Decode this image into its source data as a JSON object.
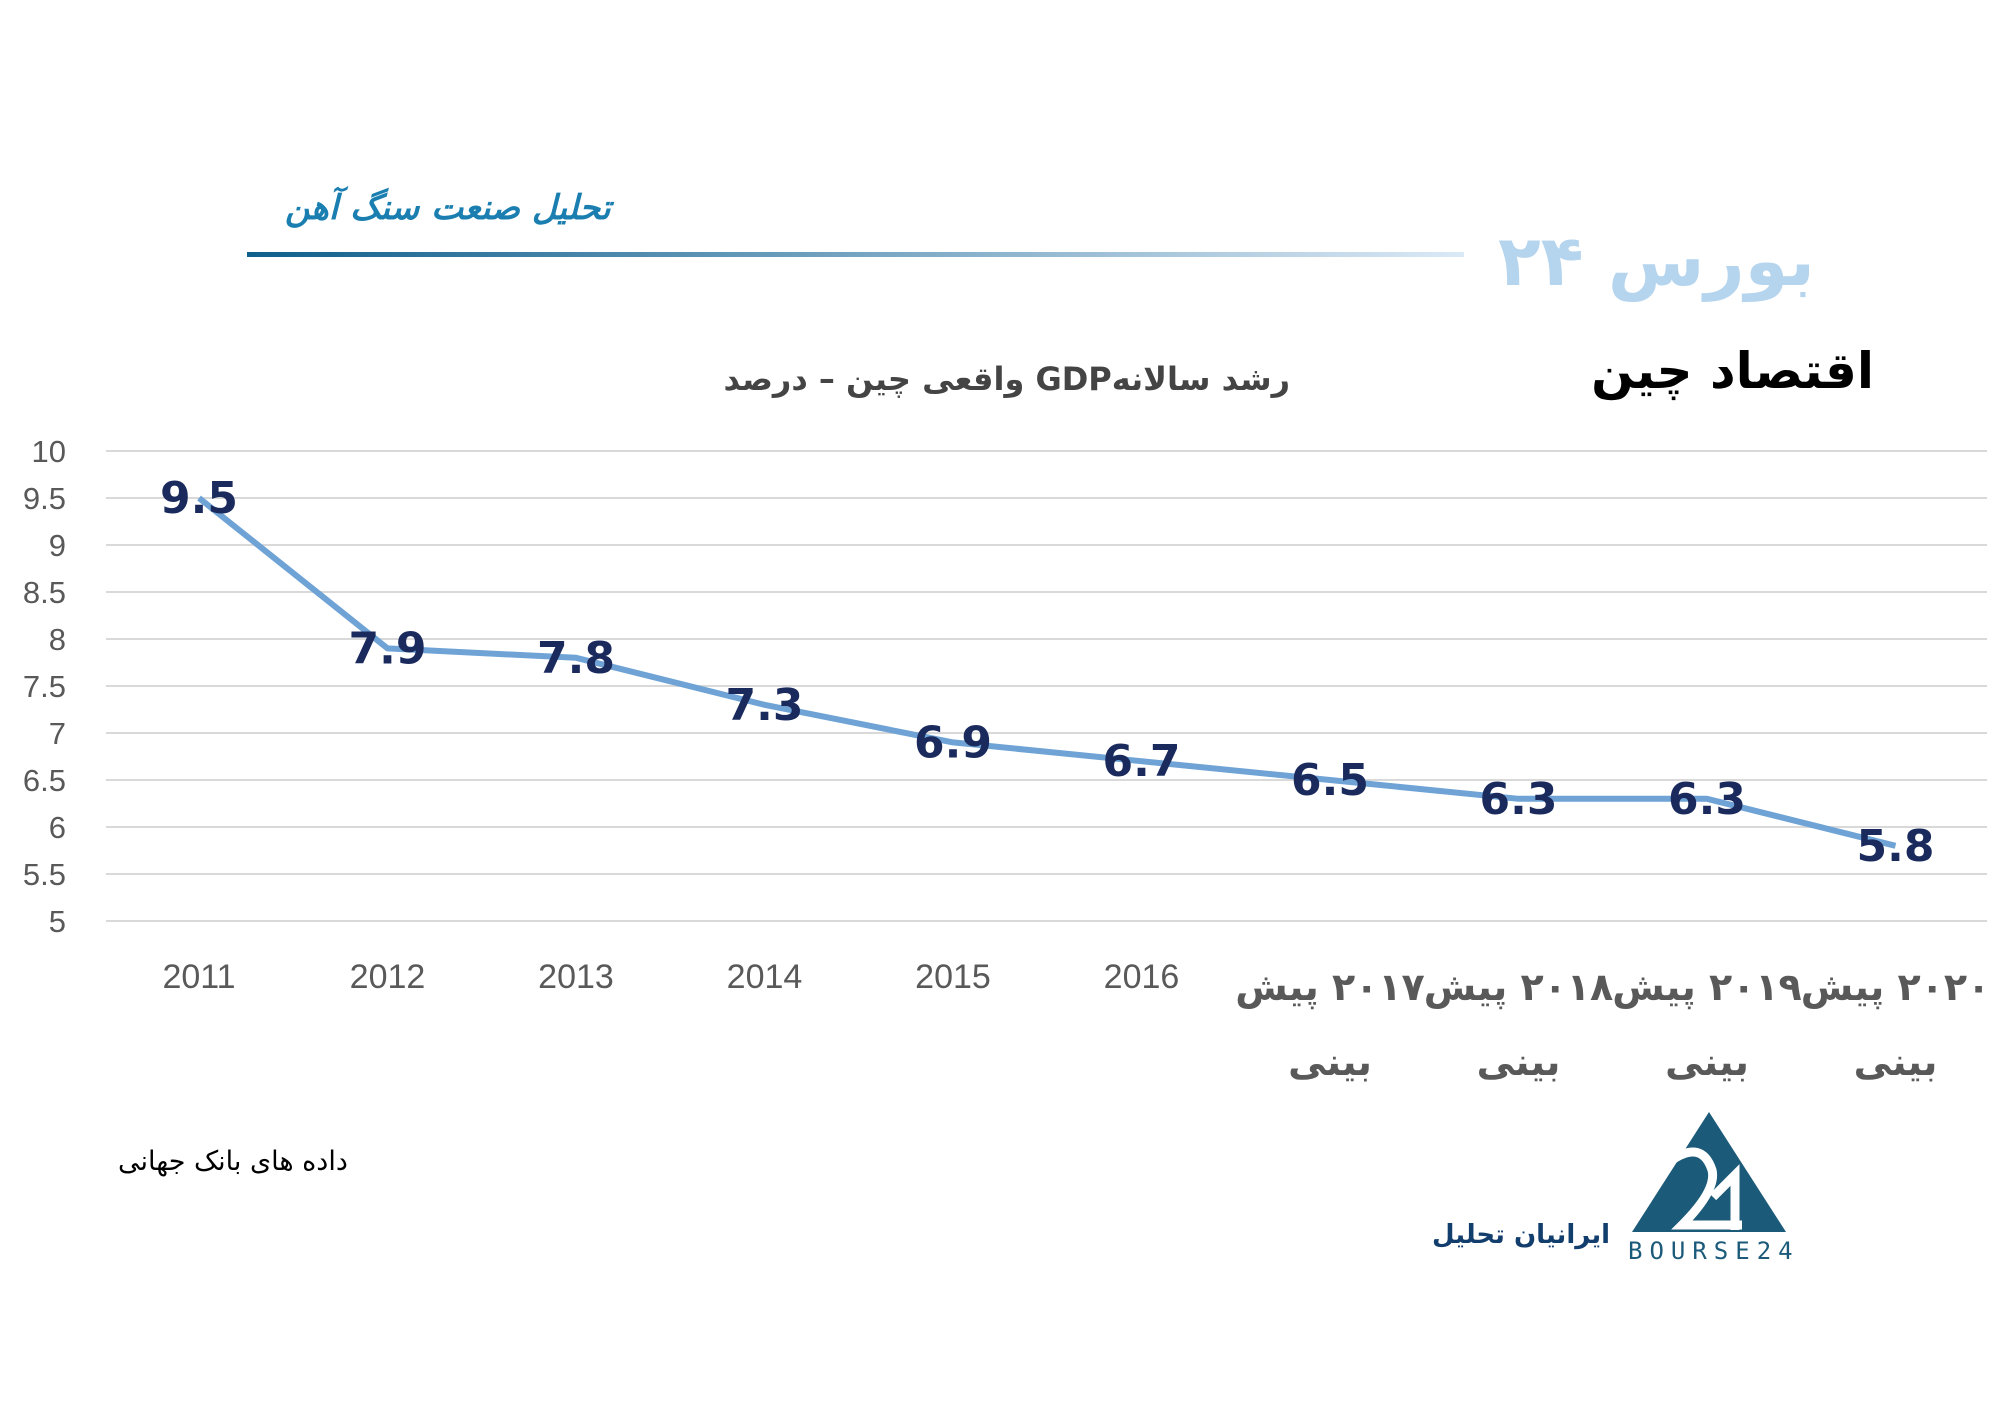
{
  "header": {
    "section_title": "تحلیل صنعت سنگ آهن",
    "brand": "بورس ۲۴"
  },
  "title": "اقتصاد چین",
  "source": "داده های بانک جهانی",
  "footer": {
    "org": "ایرانیان تحلیل",
    "logo_text": "BOURSE24"
  },
  "colors": {
    "line": "#6fa3d6",
    "label": "#1a2a5c",
    "grid": "#d9d9d9",
    "header_line_start": "#0f5f8c",
    "header_line_end": "#dbe9f6"
  },
  "chart_data": {
    "type": "line",
    "title": "رشد سالانهGDP  واقعی چین – درصد",
    "categories": [
      "2011",
      "2012",
      "2013",
      "2014",
      "2015",
      "2016",
      "۲۰۱۷ پیش بینی",
      "۲۰۱۸ پیش بینی",
      "۲۰۱۹ پیش بینی",
      "۲۰۲۰ پیش بینی"
    ],
    "category_lines": [
      [
        "2011"
      ],
      [
        "2012"
      ],
      [
        "2013"
      ],
      [
        "2014"
      ],
      [
        "2015"
      ],
      [
        "2016"
      ],
      [
        "۲۰۱۷ پیش",
        "بینی"
      ],
      [
        "۲۰۱۸ پیش",
        "بینی"
      ],
      [
        "۲۰۱۹ پیش",
        "بینی"
      ],
      [
        "۲۰۲۰ پیش",
        "بینی"
      ]
    ],
    "series": [
      {
        "name": "GDP growth",
        "values": [
          9.5,
          7.9,
          7.8,
          7.3,
          6.9,
          6.7,
          6.5,
          6.3,
          6.3,
          5.8
        ]
      }
    ],
    "ylim": [
      5,
      10
    ],
    "yticks": [
      "5",
      "5.5",
      "6",
      "6.5",
      "7",
      "7.5",
      "8",
      "8.5",
      "9",
      "9.5",
      "10"
    ],
    "grid": true,
    "legend": "none"
  }
}
